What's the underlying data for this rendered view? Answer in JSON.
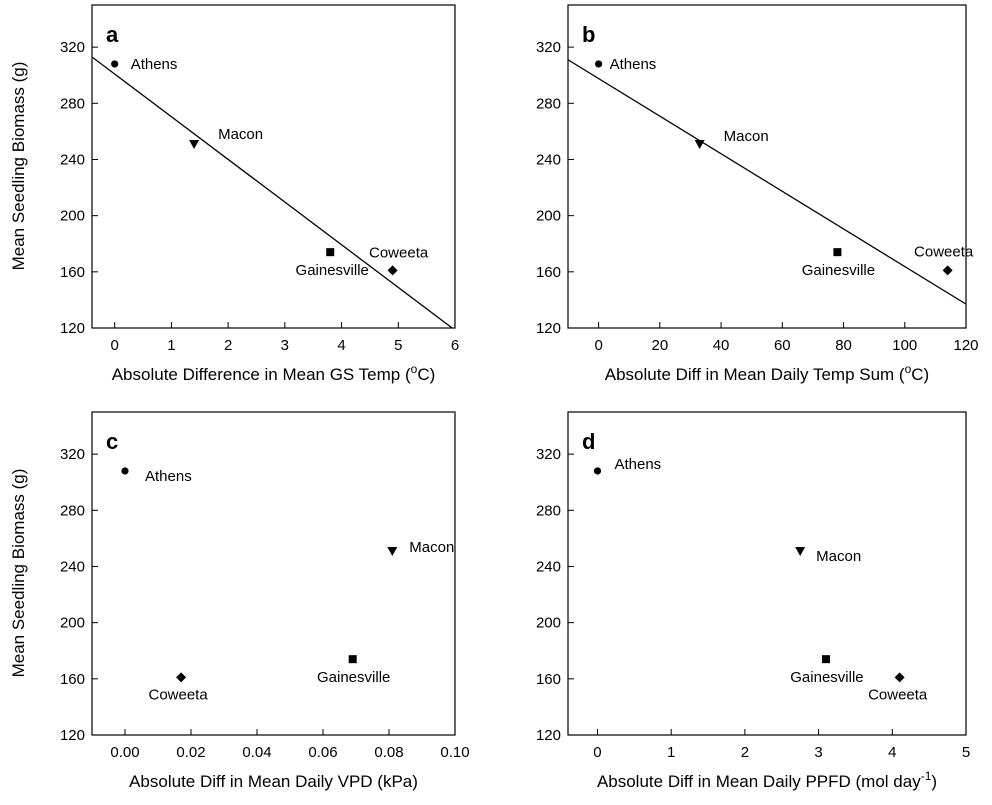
{
  "chart_data": [
    {
      "panel": "a",
      "type": "scatter",
      "xlabel": "Absolute Difference in Mean GS Temp (",
      "xlabel_unit_sup": "o",
      "xlabel_unit_tail": "C)",
      "ylabel": "Mean Seedling Biomass (g)",
      "xlim": [
        -0.4,
        6
      ],
      "ylim": [
        120,
        350
      ],
      "xticks": [
        0,
        1,
        2,
        3,
        4,
        5,
        6
      ],
      "xtick_labels": [
        "0",
        "1",
        "2",
        "3",
        "4",
        "5",
        "6"
      ],
      "yticks": [
        120,
        160,
        200,
        240,
        280,
        320
      ],
      "ytick_labels": [
        "120",
        "160",
        "200",
        "240",
        "280",
        "320"
      ],
      "points": [
        {
          "label": "Athens",
          "x": 0.0,
          "y": 308,
          "marker": "circle"
        },
        {
          "label": "Macon",
          "x": 1.4,
          "y": 251,
          "marker": "triangle-down"
        },
        {
          "label": "Gainesville",
          "x": 3.8,
          "y": 174,
          "marker": "square"
        },
        {
          "label": "Coweeta",
          "x": 4.9,
          "y": 161,
          "marker": "diamond"
        }
      ],
      "fit_line": {
        "x": [
          -0.4,
          5.95
        ],
        "y": [
          313,
          120
        ]
      }
    },
    {
      "panel": "b",
      "type": "scatter",
      "xlabel": "Absolute Diff in Mean Daily Temp Sum (",
      "xlabel_unit_sup": "o",
      "xlabel_unit_tail": "C)",
      "ylabel": "",
      "xlim": [
        -10,
        120
      ],
      "ylim": [
        120,
        350
      ],
      "xticks": [
        0,
        20,
        40,
        60,
        80,
        100,
        120
      ],
      "xtick_labels": [
        "0",
        "20",
        "40",
        "60",
        "80",
        "100",
        "120"
      ],
      "yticks": [
        120,
        160,
        200,
        240,
        280,
        320
      ],
      "ytick_labels": [
        "120",
        "160",
        "200",
        "240",
        "280",
        "320"
      ],
      "points": [
        {
          "label": "Athens",
          "x": 0,
          "y": 308,
          "marker": "circle"
        },
        {
          "label": "Macon",
          "x": 33,
          "y": 251,
          "marker": "triangle-down"
        },
        {
          "label": "Gainesville",
          "x": 78,
          "y": 174,
          "marker": "square"
        },
        {
          "label": "Coweeta",
          "x": 114,
          "y": 161,
          "marker": "diamond"
        }
      ],
      "fit_line": {
        "x": [
          -10,
          120
        ],
        "y": [
          311,
          137
        ]
      }
    },
    {
      "panel": "c",
      "type": "scatter",
      "xlabel": "Absolute Diff in Mean Daily VPD (kPa)",
      "xlabel_unit_sup": "",
      "xlabel_unit_tail": "",
      "ylabel": "Mean Seedling Biomass (g)",
      "xlim": [
        -0.01,
        0.1
      ],
      "ylim": [
        120,
        350
      ],
      "xticks": [
        0,
        0.02,
        0.04,
        0.06,
        0.08,
        0.1
      ],
      "xtick_labels": [
        "0.00",
        "0.02",
        "0.04",
        "0.06",
        "0.08",
        "0.10"
      ],
      "yticks": [
        120,
        160,
        200,
        240,
        280,
        320
      ],
      "ytick_labels": [
        "120",
        "160",
        "200",
        "240",
        "280",
        "320"
      ],
      "points": [
        {
          "label": "Athens",
          "x": 0.0,
          "y": 308,
          "marker": "circle"
        },
        {
          "label": "Macon",
          "x": 0.081,
          "y": 251,
          "marker": "triangle-down"
        },
        {
          "label": "Gainesville",
          "x": 0.069,
          "y": 174,
          "marker": "square"
        },
        {
          "label": "Coweeta",
          "x": 0.017,
          "y": 161,
          "marker": "diamond"
        }
      ]
    },
    {
      "panel": "d",
      "type": "scatter",
      "xlabel": "Absolute Diff in Mean Daily PPFD (mol day",
      "xlabel_unit_sup": "-1",
      "xlabel_unit_tail": ")",
      "ylabel": "",
      "xlim": [
        -0.4,
        5
      ],
      "ylim": [
        120,
        350
      ],
      "xticks": [
        0,
        1,
        2,
        3,
        4,
        5
      ],
      "xtick_labels": [
        "0",
        "1",
        "2",
        "3",
        "4",
        "5"
      ],
      "yticks": [
        120,
        160,
        200,
        240,
        280,
        320
      ],
      "ytick_labels": [
        "120",
        "160",
        "200",
        "240",
        "280",
        "320"
      ],
      "points": [
        {
          "label": "Athens",
          "x": 0.0,
          "y": 308,
          "marker": "circle"
        },
        {
          "label": "Macon",
          "x": 2.75,
          "y": 251,
          "marker": "triangle-down"
        },
        {
          "label": "Gainesville",
          "x": 3.1,
          "y": 174,
          "marker": "square"
        },
        {
          "label": "Coweeta",
          "x": 4.1,
          "y": 161,
          "marker": "diamond"
        }
      ]
    }
  ]
}
